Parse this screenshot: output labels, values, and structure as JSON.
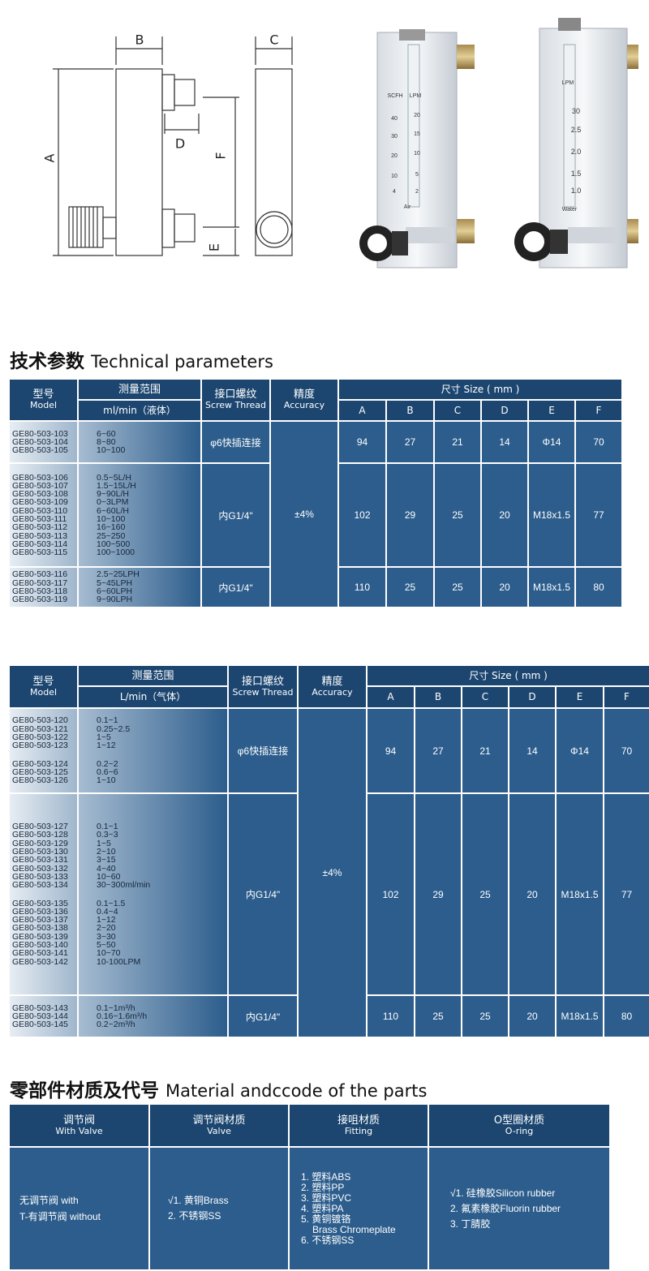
{
  "drawing": {
    "labels": [
      "B",
      "C",
      "A",
      "D",
      "F",
      "E"
    ]
  },
  "photos": {
    "left": {
      "title_left": "SCFH",
      "title_right": "LPM",
      "scale_left": [
        "40",
        "30",
        "20",
        "10",
        "4"
      ],
      "scale_right": [
        "20",
        "15",
        "10",
        "5",
        "2"
      ],
      "medium": "Air"
    },
    "right": {
      "title": "LPM",
      "scale": [
        "30",
        "2.5",
        "2.0",
        "1.5",
        "1.0"
      ],
      "medium": "Water"
    }
  },
  "section1": {
    "title_cn": "技术参数",
    "title_en": "Technical parameters"
  },
  "tables": [
    {
      "header": {
        "model_cn": "型号",
        "model_en": "Model",
        "range_cn": "测量范围",
        "range_unit": "ml/min（液体）",
        "thread_cn": "接口螺纹",
        "thread_en": "Screw Thread",
        "accuracy_cn": "精度",
        "accuracy_en": "Accuracy",
        "size": "尺寸 Size ( mm )",
        "dims": [
          "A",
          "B",
          "C",
          "D",
          "E",
          "F"
        ]
      },
      "accuracy": "±4%",
      "groups": [
        {
          "models": [
            [
              "GE80-503-103",
              "GE80-503-104",
              "GE80-503-105"
            ]
          ],
          "ranges": [
            [
              "6~60",
              "8~80",
              "10~100"
            ]
          ],
          "thread": "φ6快插连接",
          "dims": [
            94,
            27,
            21,
            14,
            "Φ14",
            70
          ]
        },
        {
          "models": [
            [
              "GE80-503-106",
              "GE80-503-107",
              "GE80-503-108",
              "GE80-503-109",
              "GE80-503-110",
              "GE80-503-111",
              "GE80-503-112",
              "GE80-503-113",
              "GE80-503-114",
              "GE80-503-115"
            ]
          ],
          "ranges": [
            [
              "0.5~5L/H",
              "1.5~15L/H",
              "9~90L/H",
              "0~3LPM",
              "6~60L/H",
              "10~100",
              "16~160",
              "25~250",
              "100~500",
              "100~1000"
            ]
          ],
          "thread": "内G1/4\"",
          "dims": [
            102,
            29,
            25,
            20,
            "M18x1.5",
            77
          ]
        },
        {
          "models": [
            [
              "GE80-503-116",
              "GE80-503-117",
              "GE80-503-118",
              "GE80-503-119"
            ]
          ],
          "ranges": [
            [
              "2.5~25LPH",
              "5~45LPH",
              "6~60LPH",
              "9~90LPH"
            ]
          ],
          "thread": "内G1/4\"",
          "dims": [
            110,
            25,
            25,
            20,
            "M18x1.5",
            80
          ]
        }
      ]
    },
    {
      "header": {
        "model_cn": "型号",
        "model_en": "Model",
        "range_cn": "测量范围",
        "range_unit": "L/min（气体）",
        "thread_cn": "接口螺纹",
        "thread_en": "Screw Thread",
        "accuracy_cn": "精度",
        "accuracy_en": "Accuracy",
        "size": "尺寸 Size ( mm )",
        "dims": [
          "A",
          "B",
          "C",
          "D",
          "E",
          "F"
        ]
      },
      "accuracy": "±4%",
      "groups": [
        {
          "models": [
            [
              "GE80-503-120",
              "GE80-503-121",
              "GE80-503-122",
              "GE80-503-123"
            ],
            [
              "GE80-503-124",
              "GE80-503-125",
              "GE80-503-126"
            ]
          ],
          "ranges": [
            [
              "0.1~1",
              "0.25~2.5",
              "1~5",
              "1~12"
            ],
            [
              "0.2~2",
              "0.6~6",
              "1~10"
            ]
          ],
          "thread": "φ6快插连接",
          "dims": [
            94,
            27,
            21,
            14,
            "Φ14",
            70
          ]
        },
        {
          "models": [
            [
              "GE80-503-127",
              "GE80-503-128",
              "GE80-503-129",
              "GE80-503-130",
              "GE80-503-131",
              "GE80-503-132",
              "GE80-503-133",
              "GE80-503-134"
            ],
            [
              "GE80-503-135",
              "GE80-503-136",
              "GE80-503-137",
              "GE80-503-138",
              "GE80-503-139",
              "GE80-503-140",
              "GE80-503-141",
              "GE80-503-142"
            ]
          ],
          "ranges": [
            [
              "0.1~1",
              "0.3~3",
              "1~5",
              "2~10",
              "3~15",
              "4~40",
              "10~60",
              "30~300ml/min"
            ],
            [
              "0.1~1.5",
              "0.4~4",
              "1~12",
              "2~20",
              "3~30",
              "5~50",
              "10~70",
              "10-100LPM"
            ]
          ],
          "thread": "内G1/4\"",
          "dims": [
            102,
            29,
            25,
            20,
            "M18x1.5",
            77
          ]
        },
        {
          "models": [
            [
              "GE80-503-143",
              "GE80-503-144",
              "GE80-503-145"
            ]
          ],
          "ranges": [
            [
              "0.1~1m³/h",
              "0.16~1.6m³/h",
              "0.2~2m³/h"
            ]
          ],
          "thread": "内G1/4\"",
          "dims": [
            110,
            25,
            25,
            20,
            "M18x1.5",
            80
          ]
        }
      ]
    }
  ],
  "section2": {
    "title_cn": "零部件材质及代号",
    "title_en": "Material andccode of the parts"
  },
  "materials": {
    "headers": [
      {
        "cn": "调节阀",
        "en": "With Valve"
      },
      {
        "cn": "调节阀材质",
        "en": "Valve"
      },
      {
        "cn": "接咀材质",
        "en": "Fitting"
      },
      {
        "cn": "O型圈材质",
        "en": "O-ring"
      }
    ],
    "cells": [
      [
        "无调节阀 with",
        "T-有调节阀 without"
      ],
      [
        "√1. 黄铜Brass",
        "2. 不锈钢SS"
      ],
      [
        "1. 塑料ABS",
        "2. 塑料PP",
        "3. 塑料PVC",
        "4. 塑料PA",
        "5. 黄铜镀铬",
        "Brass Chromeplate",
        "6. 不锈钢SS"
      ],
      [
        "√1. 硅橡胶Silicon rubber",
        "2. 氟素橡胶Fluorin rubber",
        "3. 丁腈胶"
      ]
    ]
  }
}
